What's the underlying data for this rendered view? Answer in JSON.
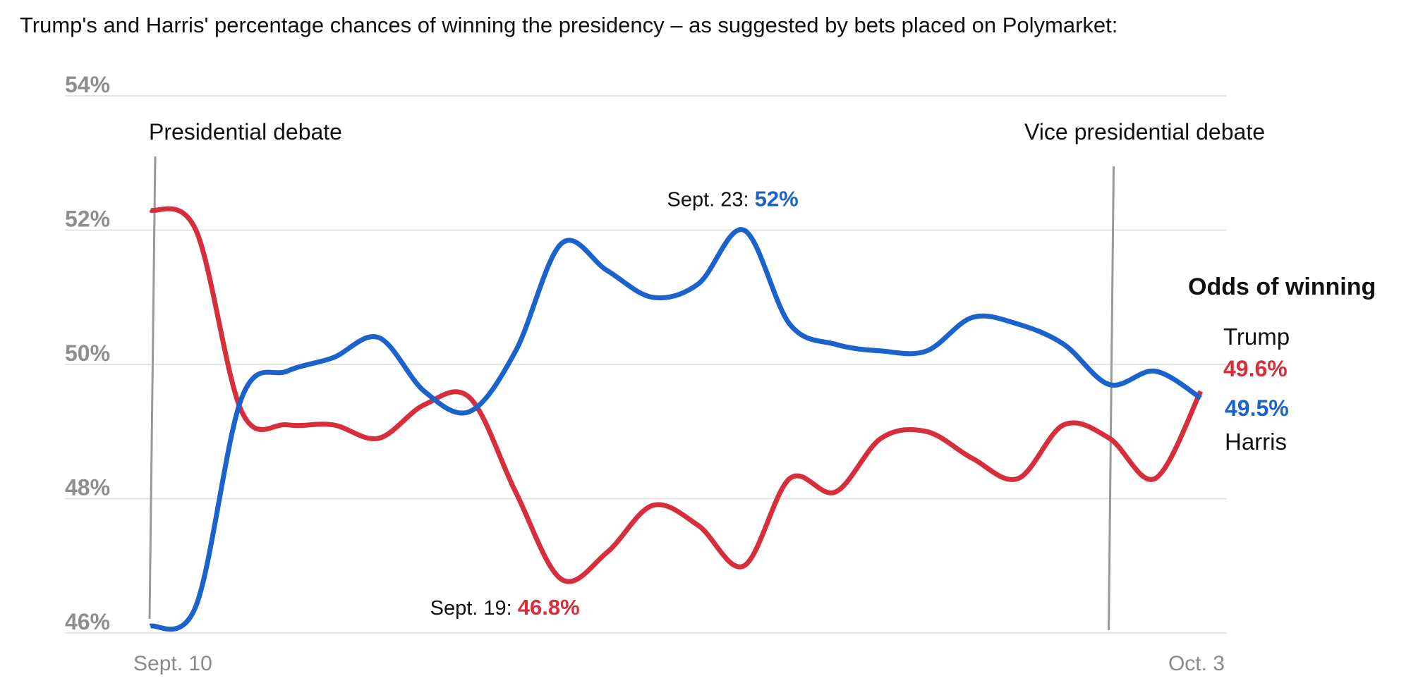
{
  "title": "Trump's and Harris' percentage chances of winning the presidency – as suggested by bets placed on Polymarket:",
  "colors": {
    "trump": "#d62e3b",
    "harris": "#1a63cc",
    "grid": "#dcdcdc",
    "event_line": "#999999",
    "axis_text": "#8e8e8e"
  },
  "chart_data": {
    "type": "line",
    "title": "Trump's and Harris' percentage chances of winning the presidency – as suggested by bets placed on Polymarket:",
    "xlabel": "",
    "ylabel": "",
    "ylim": [
      46,
      54
    ],
    "yticks": [
      46,
      48,
      50,
      52,
      54
    ],
    "ytick_labels": [
      "46%",
      "48%",
      "50%",
      "52%",
      "54%"
    ],
    "xlim": [
      "2024-09-10",
      "2024-10-03"
    ],
    "xtick_labels": [
      {
        "date": "2024-09-10",
        "label": "Sept. 10"
      },
      {
        "date": "2024-10-03",
        "label": "Oct. 3"
      }
    ],
    "grid": "horizontal",
    "x": [
      "2024-09-10",
      "2024-09-11",
      "2024-09-12",
      "2024-09-13",
      "2024-09-14",
      "2024-09-15",
      "2024-09-16",
      "2024-09-17",
      "2024-09-18",
      "2024-09-19",
      "2024-09-20",
      "2024-09-21",
      "2024-09-22",
      "2024-09-23",
      "2024-09-24",
      "2024-09-25",
      "2024-09-26",
      "2024-09-27",
      "2024-09-28",
      "2024-09-29",
      "2024-09-30",
      "2024-10-01",
      "2024-10-02",
      "2024-10-03"
    ],
    "series": [
      {
        "name": "Trump",
        "color": "#d62e3b",
        "values": [
          52.3,
          52.0,
          49.3,
          49.1,
          49.1,
          48.9,
          49.4,
          49.5,
          48.1,
          46.8,
          47.2,
          47.9,
          47.6,
          47.0,
          48.3,
          48.1,
          48.9,
          49.0,
          48.6,
          48.3,
          49.1,
          48.9,
          48.3,
          49.6
        ]
      },
      {
        "name": "Harris",
        "color": "#1a63cc",
        "values": [
          46.1,
          46.4,
          49.5,
          49.9,
          50.1,
          50.4,
          49.6,
          49.3,
          50.2,
          51.8,
          51.4,
          51.0,
          51.2,
          52.0,
          50.6,
          50.3,
          50.2,
          50.2,
          50.7,
          50.6,
          50.3,
          49.7,
          49.9,
          49.5
        ]
      }
    ],
    "events": [
      {
        "date": "2024-09-10",
        "label": "Presidential debate"
      },
      {
        "date": "2024-10-01",
        "label": "Vice presidential debate"
      }
    ],
    "annotations": [
      {
        "series": "Harris",
        "date": "2024-09-23",
        "label": "Sept. 23:",
        "value_text": "52%"
      },
      {
        "series": "Trump",
        "date": "2024-09-19",
        "label": "Sept. 19:",
        "value_text": "46.8%"
      }
    ],
    "legend": {
      "title": "Odds of winning",
      "placement": "right",
      "entries": [
        {
          "name": "Trump",
          "value_text": "49.6%",
          "color": "#d62e3b"
        },
        {
          "name": "Harris",
          "value_text": "49.5%",
          "color": "#1a63cc"
        }
      ]
    }
  }
}
